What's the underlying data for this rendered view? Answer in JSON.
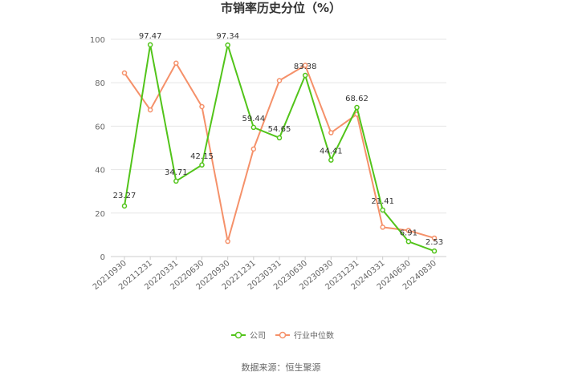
{
  "chart_data": {
    "type": "line",
    "title": "市销率历史分位（%）",
    "categories": [
      "20210930",
      "20211231",
      "20220331",
      "20220630",
      "20220930",
      "20221231",
      "20230331",
      "20230630",
      "20230930",
      "20231231",
      "20240331",
      "20240630",
      "20240830"
    ],
    "ylim": [
      0,
      100
    ],
    "yticks": [
      0,
      20,
      40,
      60,
      80,
      100
    ],
    "grid": true,
    "legend_position": "bottom",
    "series": [
      {
        "name": "公司",
        "color": "#52c41a",
        "values": [
          23.27,
          97.47,
          34.71,
          42.15,
          97.34,
          59.44,
          54.65,
          83.38,
          44.41,
          68.62,
          21.41,
          6.91,
          2.53
        ],
        "labels": [
          "23.27",
          "97.47",
          "34.71",
          "42.15",
          "97.34",
          "59.44",
          "54.65",
          "83.38",
          "44.41",
          "68.62",
          "21.41",
          "6.91",
          "2.53"
        ]
      },
      {
        "name": "行业中位数",
        "color": "#f5916a",
        "values": [
          84.5,
          67.5,
          89.0,
          69.0,
          7.0,
          49.5,
          81.0,
          88.0,
          57.0,
          65.5,
          13.5,
          12.0,
          8.5
        ]
      }
    ]
  },
  "source": "数据来源：恒生聚源"
}
